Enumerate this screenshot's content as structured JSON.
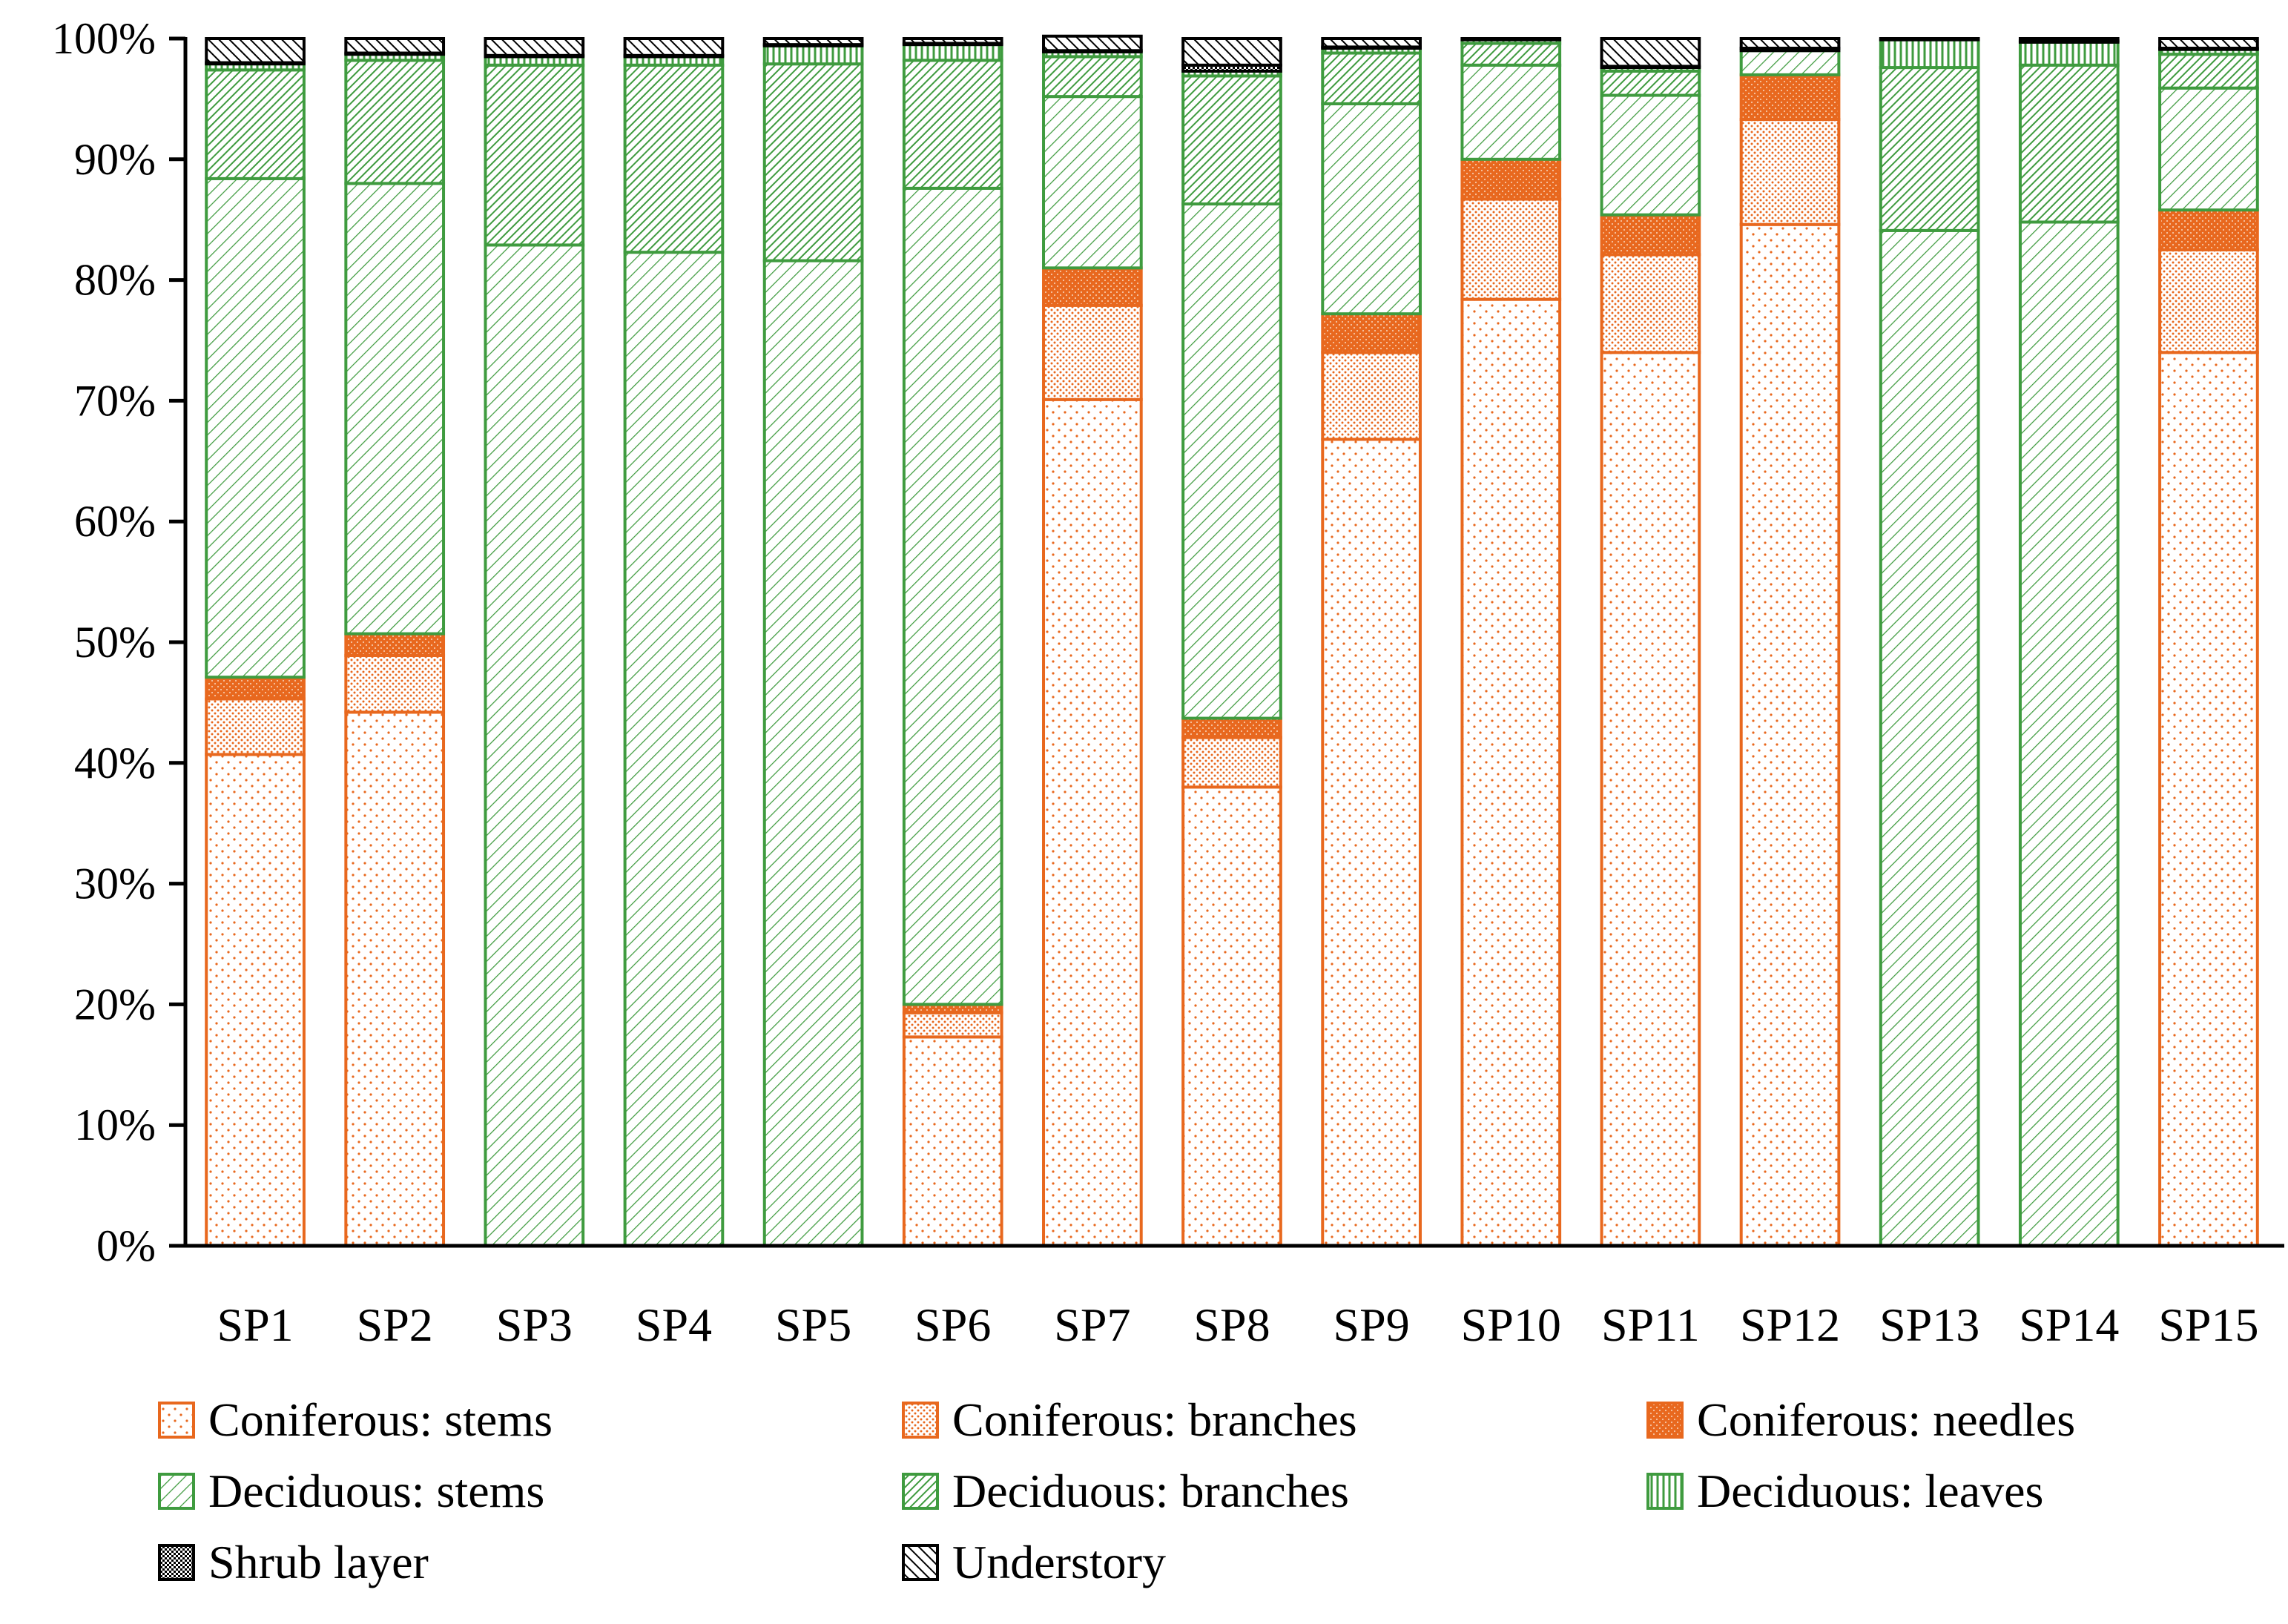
{
  "chart_data": {
    "type": "bar",
    "stacked": true,
    "percent": true,
    "title": "",
    "xlabel": "",
    "ylabel": "",
    "ylim": [
      0,
      100
    ],
    "yticks": [
      "0%",
      "10%",
      "20%",
      "30%",
      "40%",
      "50%",
      "60%",
      "70%",
      "80%",
      "90%",
      "100%"
    ],
    "grid": false,
    "legend_position": "bottom",
    "categories": [
      "SP1",
      "SP2",
      "SP3",
      "SP4",
      "SP5",
      "SP6",
      "SP7",
      "SP8",
      "SP9",
      "SP10",
      "SP11",
      "SP12",
      "SP13",
      "SP14",
      "SP15"
    ],
    "series": [
      {
        "name": "Coniferous: stems",
        "pattern": "dots",
        "color": "#e8681e",
        "fill": "#ffffff",
        "values": [
          40.7,
          44.2,
          0,
          0,
          0,
          17.3,
          70.1,
          38.0,
          66.8,
          78.4,
          74.0,
          84.6,
          0,
          0,
          74.0
        ]
      },
      {
        "name": "Coniferous: branches",
        "pattern": "dense-dots",
        "color": "#e8681e",
        "fill": "#ffffff",
        "values": [
          4.6,
          4.7,
          0,
          0,
          0,
          2.0,
          7.8,
          4.1,
          7.2,
          8.3,
          8.1,
          8.7,
          0,
          0,
          8.5
        ]
      },
      {
        "name": "Coniferous: needles",
        "pattern": "orange-dense",
        "color": "#e8681e",
        "fill": "#e8681e",
        "values": [
          1.8,
          1.8,
          0,
          0,
          0,
          0.7,
          3.1,
          1.6,
          3.2,
          3.3,
          3.3,
          3.7,
          0,
          0,
          3.3
        ]
      },
      {
        "name": "Deciduous: stems",
        "pattern": "diag-light",
        "color": "#3f9b3f",
        "fill": "#ffffff",
        "values": [
          41.3,
          37.3,
          82.9,
          82.3,
          81.6,
          67.6,
          14.2,
          42.6,
          17.4,
          7.8,
          9.9,
          2.0,
          84.1,
          84.8,
          10.1
        ]
      },
      {
        "name": "Deciduous: branches",
        "pattern": "diag-dense",
        "color": "#3f9b3f",
        "fill": "#ffffff",
        "values": [
          9.0,
          10.2,
          14.9,
          15.5,
          16.3,
          10.6,
          3.3,
          10.6,
          4.2,
          1.8,
          2.0,
          0.0,
          13.5,
          13.0,
          2.8
        ]
      },
      {
        "name": "Deciduous: leaves",
        "pattern": "vertical",
        "color": "#3f9b3f",
        "fill": "#ffffff",
        "values": [
          0.5,
          0.5,
          0.7,
          0.7,
          1.5,
          1.3,
          0.4,
          0.4,
          0.4,
          0.3,
          0.3,
          0.0,
          2.3,
          1.9,
          0.4
        ]
      },
      {
        "name": "Shrub layer",
        "pattern": "checker",
        "color": "#000000",
        "fill": "#ffffff",
        "values": [
          0.1,
          0.1,
          0.1,
          0.1,
          0.1,
          0.1,
          0.1,
          0.5,
          0.1,
          0.1,
          0.1,
          0.2,
          0.1,
          0.1,
          0.1
        ]
      },
      {
        "name": "Understory",
        "pattern": "hatch",
        "color": "#000000",
        "fill": "#ffffff",
        "values": [
          2.0,
          1.2,
          1.4,
          1.4,
          0.5,
          0.4,
          1.2,
          2.2,
          0.7,
          0.0,
          2.3,
          0.8,
          0.0,
          0.2,
          0.8
        ]
      }
    ]
  }
}
